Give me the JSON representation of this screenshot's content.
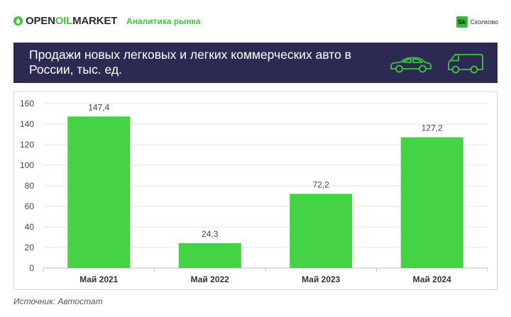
{
  "brand": {
    "part1": "OPEN",
    "part2": "OIL",
    "part3": "MARKET"
  },
  "header": {
    "tag": "Аналитика рынка"
  },
  "partner": {
    "badge": "Sk",
    "name": "Сколково"
  },
  "banner": {
    "title": "Продажи новых легковых и легких коммерческих авто в России, тыс. ед."
  },
  "icons": {
    "car": "car-outline-icon",
    "van": "van-outline-icon",
    "logo": "oil-drop-icon"
  },
  "colors": {
    "bar": "#44d344",
    "banner": "#2c2a52",
    "accent": "#3fc63f"
  },
  "chart_data": {
    "type": "bar",
    "title": "Продажи новых легковых и легких коммерческих авто в России, тыс. ед.",
    "categories": [
      "Май 2021",
      "Май 2022",
      "Май 2023",
      "Май 2024"
    ],
    "values": [
      147.4,
      24.3,
      72.2,
      127.2
    ],
    "value_labels": [
      "147,4",
      "24,3",
      "72,2",
      "127,2"
    ],
    "ylim": [
      0,
      160
    ],
    "yticks": [
      0,
      20,
      40,
      60,
      80,
      100,
      120,
      140,
      160
    ],
    "grid": true,
    "legend": "none",
    "xlabel": "",
    "ylabel": ""
  },
  "footer": {
    "source": "Источник: Автостат"
  }
}
